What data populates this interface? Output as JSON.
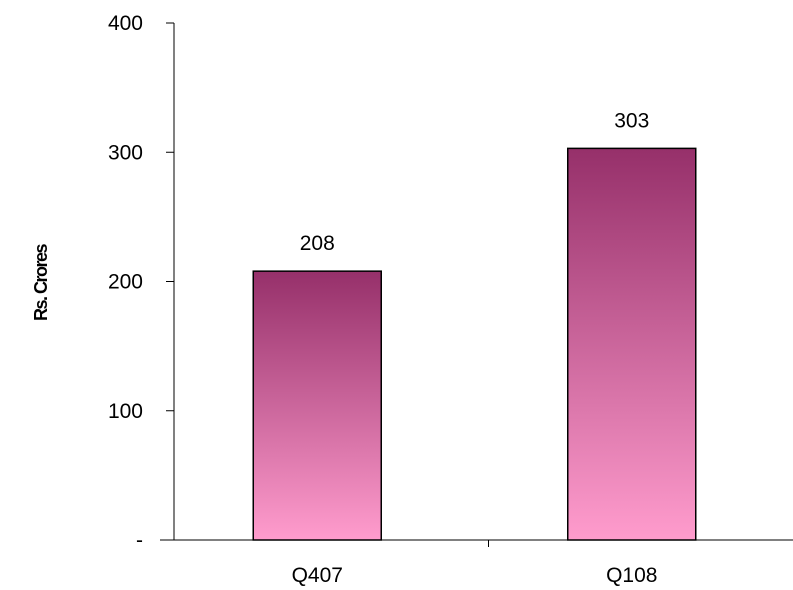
{
  "chart_data": {
    "type": "bar",
    "title": "",
    "xlabel": "",
    "ylabel": "Rs. Crores",
    "categories": [
      "Q407",
      "Q108"
    ],
    "values": [
      208,
      303
    ],
    "data_labels": [
      "208",
      "303"
    ],
    "ylim": [
      0,
      400
    ],
    "yticks": [
      0,
      100,
      200,
      300,
      400
    ],
    "ytick_labels": [
      "-",
      "100",
      "200",
      "300",
      "400"
    ],
    "grid": false,
    "legend": "none",
    "bar_gradient": [
      "#96306a",
      "#ff9ccd"
    ],
    "bar_outline": "#000000"
  }
}
